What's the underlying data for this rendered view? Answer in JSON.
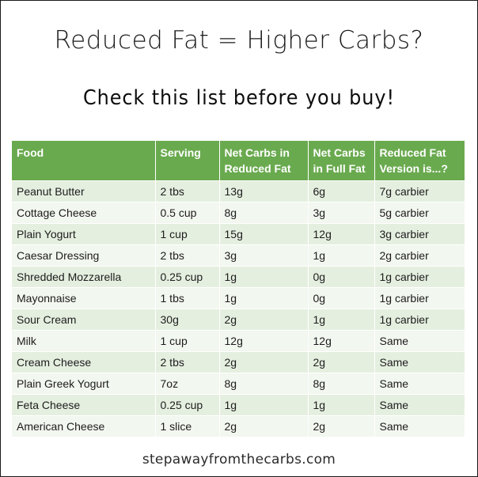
{
  "title": "Reduced Fat = Higher Carbs?",
  "subtitle": "Check this list before you buy!",
  "table": {
    "headers": [
      "Food",
      "Serving",
      "Net Carbs in Reduced Fat",
      "Net Carbs in Full Fat",
      "Reduced Fat Version is...?"
    ],
    "header_color": "#6aaa4f",
    "row_color_light": "#e5efe0",
    "rows": [
      [
        "Peanut Butter",
        "2 tbs",
        "13g",
        "6g",
        "7g carbier"
      ],
      [
        "Cottage Cheese",
        "0.5 cup",
        "8g",
        "3g",
        "5g carbier"
      ],
      [
        "Plain Yogurt",
        "1 cup",
        "15g",
        "12g",
        "3g carbier"
      ],
      [
        "Caesar Dressing",
        "2 tbs",
        "3g",
        "1g",
        "2g carbier"
      ],
      [
        "Shredded Mozzarella",
        "0.25 cup",
        "1g",
        "0g",
        "1g carbier"
      ],
      [
        "Mayonnaise",
        "1 tbs",
        "1g",
        "0g",
        "1g carbier"
      ],
      [
        "Sour Cream",
        "30g",
        "2g",
        "1g",
        "1g carbier"
      ],
      [
        "Milk",
        "1 cup",
        "12g",
        "12g",
        "Same"
      ],
      [
        "Cream Cheese",
        "2 tbs",
        "2g",
        "2g",
        "Same"
      ],
      [
        "Plain Greek Yogurt",
        "7oz",
        "8g",
        "8g",
        "Same"
      ],
      [
        "Feta Cheese",
        "0.25 cup",
        "1g",
        "1g",
        "Same"
      ],
      [
        "American Cheese",
        "1 slice",
        "2g",
        "2g",
        "Same"
      ]
    ]
  },
  "footer": "stepawayfromthecarbs.com"
}
